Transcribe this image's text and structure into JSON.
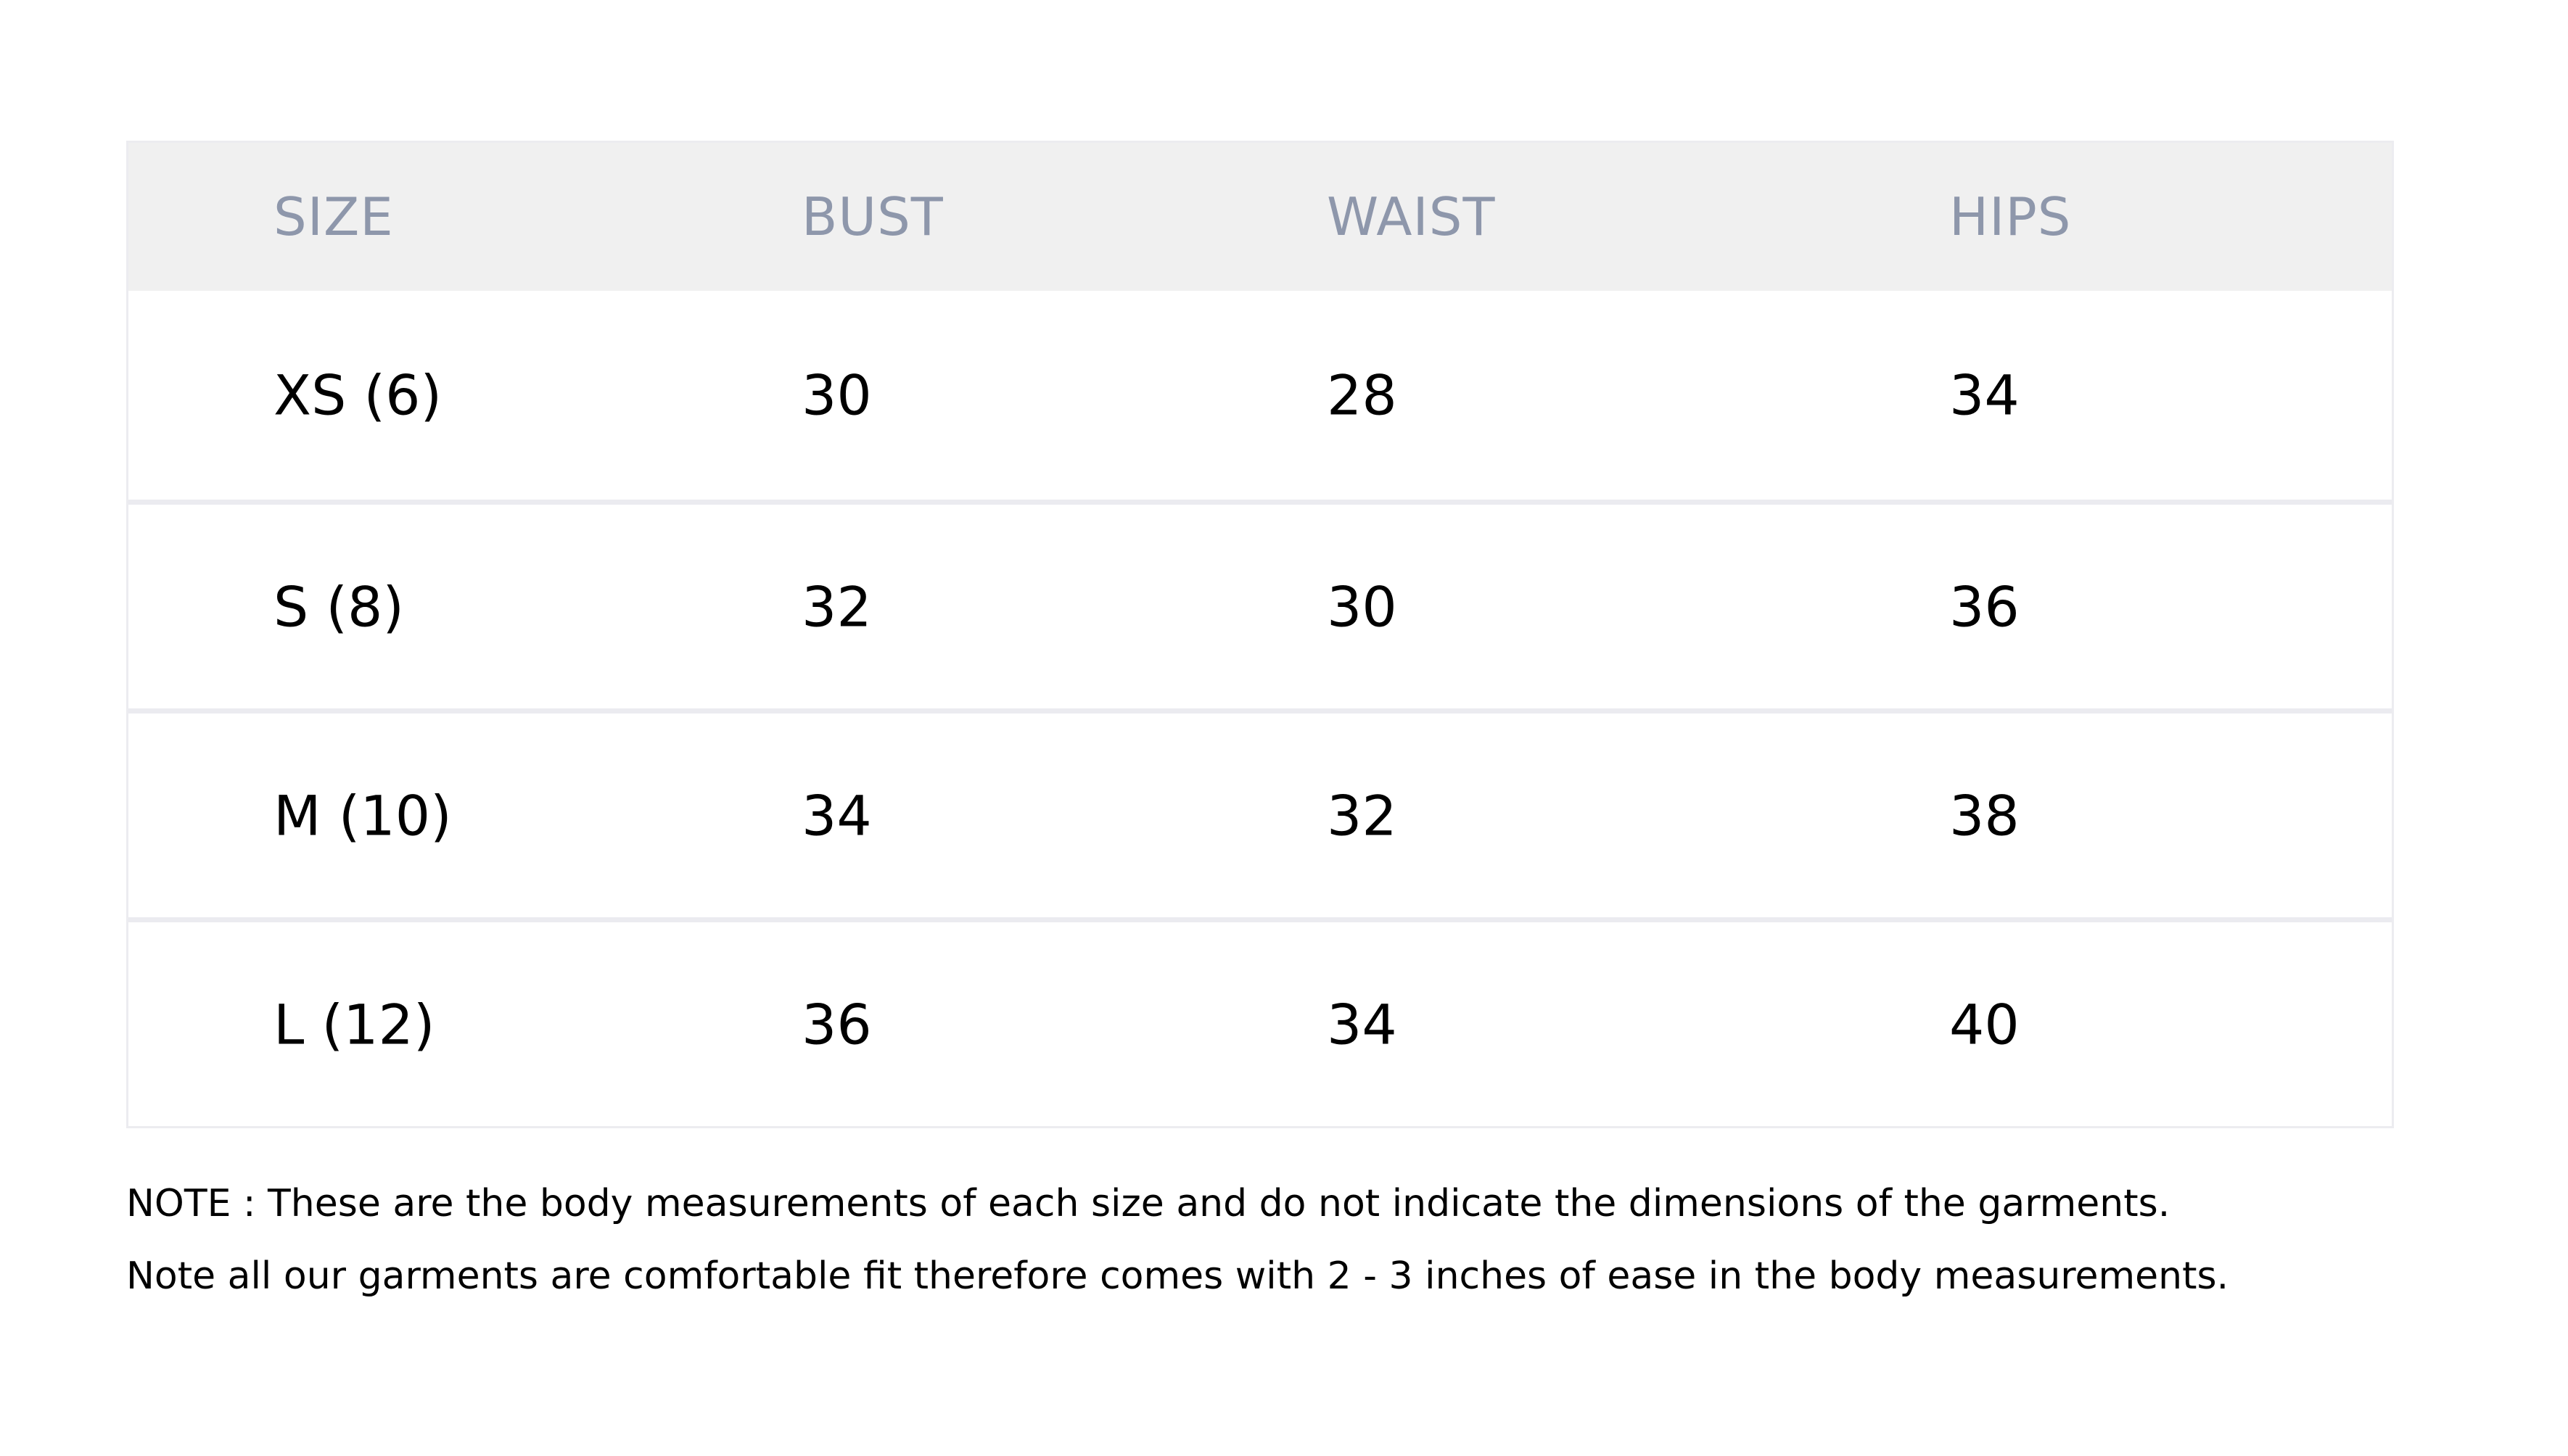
{
  "table": {
    "headers": {
      "size": "SIZE",
      "bust": "BUST",
      "waist": "WAIST",
      "hips": "HIPS"
    },
    "rows": [
      {
        "size": "XS (6)",
        "bust": "30",
        "waist": "28",
        "hips": "34"
      },
      {
        "size": "S (8)",
        "bust": "32",
        "waist": "30",
        "hips": "36"
      },
      {
        "size": "M (10)",
        "bust": "34",
        "waist": "32",
        "hips": "38"
      },
      {
        "size": "L (12)",
        "bust": "36",
        "waist": "34",
        "hips": "40"
      }
    ]
  },
  "notes": {
    "line1": "NOTE : These are the body measurements of each size and do not indicate the dimensions of the garments.",
    "line2": "Note all our garments are comfortable fit therefore comes with 2 - 3 inches of ease in the body measurements."
  },
  "colors": {
    "header_background": "#f0f0f0",
    "header_text": "#8e97ab",
    "row_divider": "#ebebf0",
    "body_text": "#000000"
  }
}
